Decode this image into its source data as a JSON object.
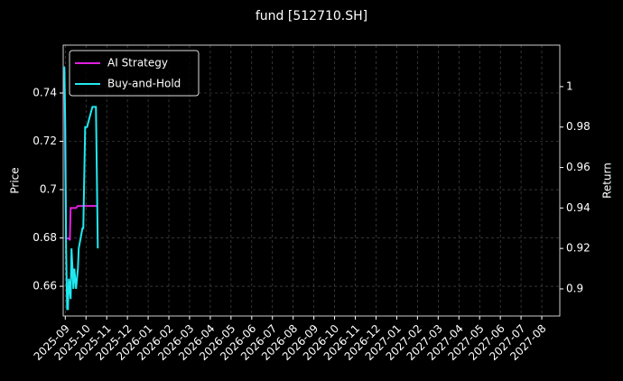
{
  "chart_data": {
    "type": "line",
    "title": "fund [512710.SH]",
    "y_label": "Price",
    "y2_label": "Return",
    "ylim": [
      0.6477,
      0.7598
    ],
    "yticks": [
      0.66,
      0.68,
      0.7,
      0.72,
      0.74
    ],
    "y2lim": [
      0.8866,
      1.0205
    ],
    "y2ticks": [
      0.9,
      0.92,
      0.94,
      0.96,
      0.98,
      1.0
    ],
    "xlim": [
      -0.1,
      23.87
    ],
    "xticks": [
      {
        "value": 0,
        "label": "2025-09"
      },
      {
        "value": 1,
        "label": "2025-10"
      },
      {
        "value": 2,
        "label": "2025-11"
      },
      {
        "value": 3,
        "label": "2025-12"
      },
      {
        "value": 4,
        "label": "2026-01"
      },
      {
        "value": 5,
        "label": "2026-02"
      },
      {
        "value": 6,
        "label": "2026-03"
      },
      {
        "value": 7,
        "label": "2026-04"
      },
      {
        "value": 8,
        "label": "2026-05"
      },
      {
        "value": 9,
        "label": "2026-06"
      },
      {
        "value": 10,
        "label": "2026-07"
      },
      {
        "value": 11,
        "label": "2026-08"
      },
      {
        "value": 12,
        "label": "2026-09"
      },
      {
        "value": 13,
        "label": "2026-10"
      },
      {
        "value": 14,
        "label": "2026-11"
      },
      {
        "value": 15,
        "label": "2026-12"
      },
      {
        "value": 16,
        "label": "2027-01"
      },
      {
        "value": 17,
        "label": "2027-02"
      },
      {
        "value": 18,
        "label": "2027-03"
      },
      {
        "value": 19,
        "label": "2027-04"
      },
      {
        "value": 20,
        "label": "2027-05"
      },
      {
        "value": 21,
        "label": "2027-06"
      },
      {
        "value": 22,
        "label": "2027-07"
      },
      {
        "value": 23,
        "label": "2027-08"
      }
    ],
    "grid": true,
    "legend": "upper-left",
    "series": [
      {
        "name": "AI Strategy",
        "color": "#e020e0",
        "axis": "y2",
        "x": [
          -0.07,
          -0.04,
          0,
          0.04,
          0.17,
          0.22,
          0.26,
          0.52,
          0.61,
          1.57
        ],
        "values": [
          1.01,
          1.008,
          0.96,
          0.925,
          0.925,
          0.924,
          0.94,
          0.94,
          0.941,
          0.941
        ]
      },
      {
        "name": "Buy-and-Hold",
        "color": "#20e8f0",
        "axis": "y2",
        "x": [
          -0.07,
          -0.04,
          0,
          0.04,
          0.09,
          0.13,
          0.17,
          0.22,
          0.26,
          0.3,
          0.35,
          0.39,
          0.44,
          0.52,
          0.61,
          0.65,
          0.74,
          0.83,
          0.87,
          0.96,
          1.05,
          1.18,
          1.31,
          1.39,
          1.48,
          1.52,
          1.57
        ],
        "values": [
          1.01,
          1.008,
          0.98,
          0.92,
          0.89,
          0.89,
          0.905,
          0.9,
          0.895,
          0.92,
          0.91,
          0.9,
          0.91,
          0.9,
          0.91,
          0.92,
          0.925,
          0.93,
          0.93,
          0.98,
          0.98,
          0.985,
          0.99,
          0.99,
          0.99,
          0.96,
          0.92
        ]
      }
    ]
  }
}
